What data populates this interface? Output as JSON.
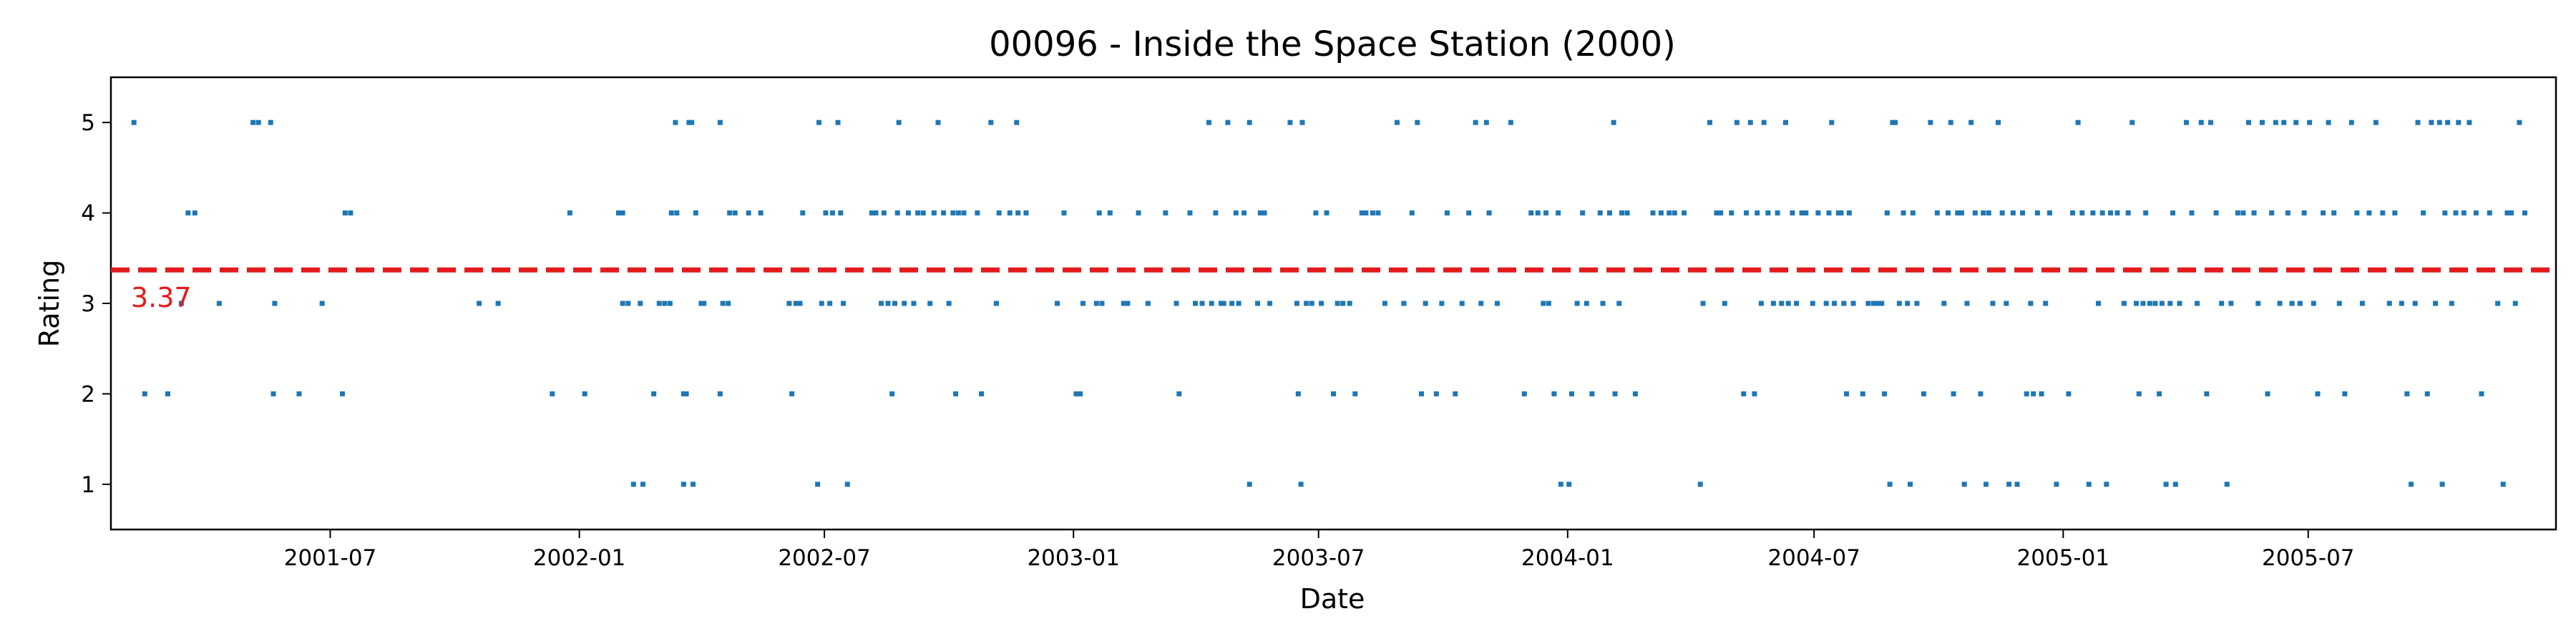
{
  "chart_data": {
    "type": "scatter",
    "title": "00096 - Inside the Space Station (2000)",
    "xlabel": "Date",
    "ylabel": "Rating",
    "xlim": [
      "2001-01-20",
      "2005-12-31"
    ],
    "ylim": [
      0.5,
      5.5
    ],
    "grid": false,
    "x_ticks": [
      "2001-07",
      "2002-01",
      "2002-07",
      "2003-01",
      "2003-07",
      "2004-01",
      "2004-07",
      "2005-01",
      "2005-07"
    ],
    "y_ticks": [
      1,
      2,
      3,
      4,
      5
    ],
    "series_color": "#1f77b4",
    "mean_line": {
      "value": 3.37,
      "label": "3.37",
      "color": "#e41a1c",
      "style": "dashed"
    },
    "points": [
      [
        "2001-02-06",
        5
      ],
      [
        "2001-02-14",
        2
      ],
      [
        "2001-03-03",
        2
      ],
      [
        "2001-03-18",
        4
      ],
      [
        "2001-03-23",
        4
      ],
      [
        "2001-03-13",
        3
      ],
      [
        "2001-04-10",
        3
      ],
      [
        "2001-05-05",
        5
      ],
      [
        "2001-05-09",
        5
      ],
      [
        "2001-05-18",
        5
      ],
      [
        "2001-05-21",
        3
      ],
      [
        "2001-05-20",
        2
      ],
      [
        "2001-06-08",
        2
      ],
      [
        "2001-06-25",
        3
      ],
      [
        "2001-07-10",
        2
      ],
      [
        "2001-07-12",
        4
      ],
      [
        "2001-07-16",
        4
      ],
      [
        "2001-10-19",
        3
      ],
      [
        "2001-11-02",
        3
      ],
      [
        "2001-12-12",
        2
      ],
      [
        "2001-12-25",
        4
      ],
      [
        "2002-01-05",
        2
      ],
      [
        "2002-01-30",
        4
      ],
      [
        "2002-02-02",
        4
      ],
      [
        "2002-02-02",
        3
      ],
      [
        "2002-02-06",
        3
      ],
      [
        "2002-02-10",
        1
      ],
      [
        "2002-02-15",
        3
      ],
      [
        "2002-02-17",
        1
      ],
      [
        "2002-02-25",
        2
      ],
      [
        "2002-03-01",
        3
      ],
      [
        "2002-03-05",
        3
      ],
      [
        "2002-03-09",
        3
      ],
      [
        "2002-03-10",
        4
      ],
      [
        "2002-03-13",
        5
      ],
      [
        "2002-03-14",
        4
      ],
      [
        "2002-03-19",
        1
      ],
      [
        "2002-03-19",
        2
      ],
      [
        "2002-03-21",
        2
      ],
      [
        "2002-03-23",
        5
      ],
      [
        "2002-03-25",
        5
      ],
      [
        "2002-03-26",
        1
      ],
      [
        "2002-03-28",
        4
      ],
      [
        "2002-04-01",
        3
      ],
      [
        "2002-04-03",
        3
      ],
      [
        "2002-04-15",
        5
      ],
      [
        "2002-04-15",
        2
      ],
      [
        "2002-04-17",
        3
      ],
      [
        "2002-04-21",
        3
      ],
      [
        "2002-04-22",
        4
      ],
      [
        "2002-04-26",
        4
      ],
      [
        "2002-05-06",
        4
      ],
      [
        "2002-05-15",
        4
      ],
      [
        "2002-06-05",
        3
      ],
      [
        "2002-06-07",
        2
      ],
      [
        "2002-06-10",
        3
      ],
      [
        "2002-06-13",
        3
      ],
      [
        "2002-06-15",
        4
      ],
      [
        "2002-06-27",
        5
      ],
      [
        "2002-06-26",
        1
      ],
      [
        "2002-06-29",
        3
      ],
      [
        "2002-07-02",
        4
      ],
      [
        "2002-07-05",
        3
      ],
      [
        "2002-07-07",
        4
      ],
      [
        "2002-07-11",
        5
      ],
      [
        "2002-07-13",
        4
      ],
      [
        "2002-07-15",
        3
      ],
      [
        "2002-07-18",
        1
      ],
      [
        "2002-08-05",
        4
      ],
      [
        "2002-08-08",
        4
      ],
      [
        "2002-08-12",
        3
      ],
      [
        "2002-08-14",
        4
      ],
      [
        "2002-08-17",
        3
      ],
      [
        "2002-08-20",
        2
      ],
      [
        "2002-08-22",
        3
      ],
      [
        "2002-08-24",
        4
      ],
      [
        "2002-08-25",
        5
      ],
      [
        "2002-08-29",
        3
      ],
      [
        "2002-09-01",
        4
      ],
      [
        "2002-09-05",
        3
      ],
      [
        "2002-09-08",
        4
      ],
      [
        "2002-09-12",
        4
      ],
      [
        "2002-09-17",
        3
      ],
      [
        "2002-09-20",
        4
      ],
      [
        "2002-09-23",
        5
      ],
      [
        "2002-09-27",
        4
      ],
      [
        "2002-10-01",
        3
      ],
      [
        "2002-10-04",
        4
      ],
      [
        "2002-10-06",
        2
      ],
      [
        "2002-10-08",
        4
      ],
      [
        "2002-10-12",
        4
      ],
      [
        "2002-10-22",
        4
      ],
      [
        "2002-10-25",
        2
      ],
      [
        "2002-11-01",
        5
      ],
      [
        "2002-11-05",
        3
      ],
      [
        "2002-11-07",
        4
      ],
      [
        "2002-11-15",
        4
      ],
      [
        "2002-11-20",
        5
      ],
      [
        "2002-11-21",
        4
      ],
      [
        "2002-11-27",
        4
      ],
      [
        "2002-12-20",
        3
      ],
      [
        "2002-12-25",
        4
      ],
      [
        "2003-01-03",
        2
      ],
      [
        "2003-01-06",
        2
      ],
      [
        "2003-01-08",
        3
      ],
      [
        "2003-01-18",
        3
      ],
      [
        "2003-01-20",
        4
      ],
      [
        "2003-01-22",
        3
      ],
      [
        "2003-01-28",
        4
      ],
      [
        "2003-02-07",
        3
      ],
      [
        "2003-02-10",
        3
      ],
      [
        "2003-02-18",
        4
      ],
      [
        "2003-02-25",
        3
      ],
      [
        "2003-03-10",
        4
      ],
      [
        "2003-03-18",
        3
      ],
      [
        "2003-03-20",
        2
      ],
      [
        "2003-03-28",
        4
      ],
      [
        "2003-04-01",
        3
      ],
      [
        "2003-04-06",
        3
      ],
      [
        "2003-04-11",
        5
      ],
      [
        "2003-04-13",
        3
      ],
      [
        "2003-04-16",
        4
      ],
      [
        "2003-04-20",
        3
      ],
      [
        "2003-04-22",
        3
      ],
      [
        "2003-04-25",
        5
      ],
      [
        "2003-04-28",
        3
      ],
      [
        "2003-05-01",
        4
      ],
      [
        "2003-05-03",
        3
      ],
      [
        "2003-05-07",
        4
      ],
      [
        "2003-05-11",
        5
      ],
      [
        "2003-05-11",
        1
      ],
      [
        "2003-05-17",
        3
      ],
      [
        "2003-05-19",
        4
      ],
      [
        "2003-05-22",
        4
      ],
      [
        "2003-05-26",
        3
      ],
      [
        "2003-06-10",
        5
      ],
      [
        "2003-06-15",
        3
      ],
      [
        "2003-06-18",
        1
      ],
      [
        "2003-06-16",
        2
      ],
      [
        "2003-06-19",
        5
      ],
      [
        "2003-06-22",
        3
      ],
      [
        "2003-06-26",
        3
      ],
      [
        "2003-06-29",
        4
      ],
      [
        "2003-07-03",
        3
      ],
      [
        "2003-07-07",
        4
      ],
      [
        "2003-07-12",
        2
      ],
      [
        "2003-07-15",
        3
      ],
      [
        "2003-07-19",
        3
      ],
      [
        "2003-07-24",
        3
      ],
      [
        "2003-07-28",
        2
      ],
      [
        "2003-08-02",
        4
      ],
      [
        "2003-08-05",
        4
      ],
      [
        "2003-08-10",
        4
      ],
      [
        "2003-08-14",
        4
      ],
      [
        "2003-08-19",
        3
      ],
      [
        "2003-08-28",
        5
      ],
      [
        "2003-09-02",
        3
      ],
      [
        "2003-09-08",
        4
      ],
      [
        "2003-09-12",
        5
      ],
      [
        "2003-09-15",
        2
      ],
      [
        "2003-09-18",
        3
      ],
      [
        "2003-09-26",
        2
      ],
      [
        "2003-09-30",
        3
      ],
      [
        "2003-10-04",
        4
      ],
      [
        "2003-10-10",
        2
      ],
      [
        "2003-10-15",
        3
      ],
      [
        "2003-10-20",
        4
      ],
      [
        "2003-10-25",
        5
      ],
      [
        "2003-10-29",
        3
      ],
      [
        "2003-11-02",
        5
      ],
      [
        "2003-11-04",
        4
      ],
      [
        "2003-11-10",
        3
      ],
      [
        "2003-11-20",
        5
      ],
      [
        "2003-11-30",
        2
      ],
      [
        "2003-12-05",
        4
      ],
      [
        "2003-12-10",
        4
      ],
      [
        "2003-12-14",
        3
      ],
      [
        "2003-12-16",
        4
      ],
      [
        "2003-12-18",
        3
      ],
      [
        "2003-12-22",
        2
      ],
      [
        "2003-12-25",
        4
      ],
      [
        "2003-12-27",
        1
      ],
      [
        "2004-01-02",
        1
      ],
      [
        "2004-01-04",
        2
      ],
      [
        "2004-01-08",
        3
      ],
      [
        "2004-01-12",
        4
      ],
      [
        "2004-01-15",
        3
      ],
      [
        "2004-01-19",
        2
      ],
      [
        "2004-01-25",
        4
      ],
      [
        "2004-01-27",
        3
      ],
      [
        "2004-02-01",
        4
      ],
      [
        "2004-02-05",
        2
      ],
      [
        "2004-02-04",
        5
      ],
      [
        "2004-02-08",
        3
      ],
      [
        "2004-02-10",
        4
      ],
      [
        "2004-02-14",
        4
      ],
      [
        "2004-02-20",
        2
      ],
      [
        "2004-03-04",
        4
      ],
      [
        "2004-03-10",
        4
      ],
      [
        "2004-03-16",
        4
      ],
      [
        "2004-03-20",
        4
      ],
      [
        "2004-03-27",
        4
      ],
      [
        "2004-04-08",
        1
      ],
      [
        "2004-04-10",
        3
      ],
      [
        "2004-04-15",
        5
      ],
      [
        "2004-04-20",
        4
      ],
      [
        "2004-04-23",
        4
      ],
      [
        "2004-04-26",
        3
      ],
      [
        "2004-05-01",
        4
      ],
      [
        "2004-05-05",
        5
      ],
      [
        "2004-05-10",
        2
      ],
      [
        "2004-05-12",
        4
      ],
      [
        "2004-05-15",
        5
      ],
      [
        "2004-05-18",
        2
      ],
      [
        "2004-05-20",
        4
      ],
      [
        "2004-05-23",
        3
      ],
      [
        "2004-05-25",
        5
      ],
      [
        "2004-05-28",
        4
      ],
      [
        "2004-06-01",
        3
      ],
      [
        "2004-06-04",
        4
      ],
      [
        "2004-06-07",
        3
      ],
      [
        "2004-06-10",
        5
      ],
      [
        "2004-06-12",
        3
      ],
      [
        "2004-06-15",
        4
      ],
      [
        "2004-06-18",
        3
      ],
      [
        "2004-06-22",
        4
      ],
      [
        "2004-06-25",
        4
      ],
      [
        "2004-06-30",
        3
      ],
      [
        "2004-07-04",
        4
      ],
      [
        "2004-07-10",
        3
      ],
      [
        "2004-07-12",
        4
      ],
      [
        "2004-07-14",
        5
      ],
      [
        "2004-07-16",
        3
      ],
      [
        "2004-07-19",
        4
      ],
      [
        "2004-07-21",
        4
      ],
      [
        "2004-07-23",
        3
      ],
      [
        "2004-07-25",
        2
      ],
      [
        "2004-07-27",
        4
      ],
      [
        "2004-07-30",
        3
      ],
      [
        "2004-08-06",
        2
      ],
      [
        "2004-08-10",
        3
      ],
      [
        "2004-08-14",
        3
      ],
      [
        "2004-08-17",
        3
      ],
      [
        "2004-08-20",
        3
      ],
      [
        "2004-08-22",
        2
      ],
      [
        "2004-08-24",
        4
      ],
      [
        "2004-08-26",
        1
      ],
      [
        "2004-08-28",
        5
      ],
      [
        "2004-08-30",
        5
      ],
      [
        "2004-09-02",
        3
      ],
      [
        "2004-09-05",
        4
      ],
      [
        "2004-09-08",
        3
      ],
      [
        "2004-09-10",
        1
      ],
      [
        "2004-09-12",
        4
      ],
      [
        "2004-09-15",
        3
      ],
      [
        "2004-09-20",
        2
      ],
      [
        "2004-09-25",
        5
      ],
      [
        "2004-09-30",
        4
      ],
      [
        "2004-10-05",
        3
      ],
      [
        "2004-10-08",
        4
      ],
      [
        "2004-10-10",
        5
      ],
      [
        "2004-10-12",
        2
      ],
      [
        "2004-10-15",
        4
      ],
      [
        "2004-10-18",
        4
      ],
      [
        "2004-10-20",
        1
      ],
      [
        "2004-10-22",
        3
      ],
      [
        "2004-10-25",
        5
      ],
      [
        "2004-10-28",
        4
      ],
      [
        "2004-11-01",
        2
      ],
      [
        "2004-11-03",
        4
      ],
      [
        "2004-11-05",
        1
      ],
      [
        "2004-11-07",
        4
      ],
      [
        "2004-11-10",
        3
      ],
      [
        "2004-11-14",
        5
      ],
      [
        "2004-11-17",
        4
      ],
      [
        "2004-11-20",
        3
      ],
      [
        "2004-11-22",
        1
      ],
      [
        "2004-11-25",
        4
      ],
      [
        "2004-11-28",
        1
      ],
      [
        "2004-12-02",
        4
      ],
      [
        "2004-12-05",
        2
      ],
      [
        "2004-12-08",
        3
      ],
      [
        "2004-12-10",
        2
      ],
      [
        "2004-12-13",
        4
      ],
      [
        "2004-12-16",
        2
      ],
      [
        "2004-12-19",
        3
      ],
      [
        "2004-12-22",
        4
      ],
      [
        "2004-12-27",
        1
      ],
      [
        "2005-01-05",
        2
      ],
      [
        "2005-01-08",
        4
      ],
      [
        "2005-01-12",
        5
      ],
      [
        "2005-01-15",
        4
      ],
      [
        "2005-01-20",
        1
      ],
      [
        "2005-01-23",
        4
      ],
      [
        "2005-01-27",
        3
      ],
      [
        "2005-01-30",
        4
      ],
      [
        "2005-02-02",
        1
      ],
      [
        "2005-02-05",
        4
      ],
      [
        "2005-02-10",
        4
      ],
      [
        "2005-02-15",
        3
      ],
      [
        "2005-02-18",
        4
      ],
      [
        "2005-02-21",
        5
      ],
      [
        "2005-02-24",
        3
      ],
      [
        "2005-02-26",
        2
      ],
      [
        "2005-03-01",
        3
      ],
      [
        "2005-03-03",
        4
      ],
      [
        "2005-03-06",
        3
      ],
      [
        "2005-03-10",
        3
      ],
      [
        "2005-03-13",
        2
      ],
      [
        "2005-03-15",
        3
      ],
      [
        "2005-03-18",
        1
      ],
      [
        "2005-03-21",
        3
      ],
      [
        "2005-03-23",
        4
      ],
      [
        "2005-03-25",
        1
      ],
      [
        "2005-03-28",
        3
      ],
      [
        "2005-04-02",
        5
      ],
      [
        "2005-04-06",
        4
      ],
      [
        "2005-04-10",
        3
      ],
      [
        "2005-04-13",
        5
      ],
      [
        "2005-04-17",
        2
      ],
      [
        "2005-04-20",
        5
      ],
      [
        "2005-04-24",
        4
      ],
      [
        "2005-04-28",
        3
      ],
      [
        "2005-05-02",
        1
      ],
      [
        "2005-05-05",
        3
      ],
      [
        "2005-05-10",
        4
      ],
      [
        "2005-05-14",
        4
      ],
      [
        "2005-05-18",
        5
      ],
      [
        "2005-05-22",
        4
      ],
      [
        "2005-05-25",
        3
      ],
      [
        "2005-05-28",
        5
      ],
      [
        "2005-06-01",
        2
      ],
      [
        "2005-06-04",
        4
      ],
      [
        "2005-06-07",
        5
      ],
      [
        "2005-06-10",
        3
      ],
      [
        "2005-06-13",
        5
      ],
      [
        "2005-06-16",
        4
      ],
      [
        "2005-06-19",
        3
      ],
      [
        "2005-06-22",
        5
      ],
      [
        "2005-06-25",
        3
      ],
      [
        "2005-06-28",
        4
      ],
      [
        "2005-07-02",
        5
      ],
      [
        "2005-07-05",
        3
      ],
      [
        "2005-07-08",
        2
      ],
      [
        "2005-07-12",
        4
      ],
      [
        "2005-07-16",
        5
      ],
      [
        "2005-07-20",
        4
      ],
      [
        "2005-07-24",
        3
      ],
      [
        "2005-07-28",
        2
      ],
      [
        "2005-08-02",
        5
      ],
      [
        "2005-08-06",
        4
      ],
      [
        "2005-08-10",
        3
      ],
      [
        "2005-08-15",
        4
      ],
      [
        "2005-08-20",
        5
      ],
      [
        "2005-08-25",
        4
      ],
      [
        "2005-08-30",
        3
      ],
      [
        "2005-09-03",
        4
      ],
      [
        "2005-09-08",
        3
      ],
      [
        "2005-09-12",
        2
      ],
      [
        "2005-09-15",
        1
      ],
      [
        "2005-09-18",
        3
      ],
      [
        "2005-09-20",
        5
      ],
      [
        "2005-09-24",
        4
      ],
      [
        "2005-09-27",
        2
      ],
      [
        "2005-09-30",
        5
      ],
      [
        "2005-10-03",
        3
      ],
      [
        "2005-10-06",
        5
      ],
      [
        "2005-10-08",
        1
      ],
      [
        "2005-10-10",
        4
      ],
      [
        "2005-10-12",
        5
      ],
      [
        "2005-10-15",
        3
      ],
      [
        "2005-10-18",
        4
      ],
      [
        "2005-10-20",
        5
      ],
      [
        "2005-10-24",
        4
      ],
      [
        "2005-10-28",
        5
      ],
      [
        "2005-11-02",
        4
      ],
      [
        "2005-11-06",
        2
      ],
      [
        "2005-11-12",
        4
      ],
      [
        "2005-11-18",
        3
      ],
      [
        "2005-11-22",
        1
      ],
      [
        "2005-11-25",
        4
      ],
      [
        "2005-11-28",
        4
      ],
      [
        "2005-12-01",
        3
      ],
      [
        "2005-12-04",
        5
      ],
      [
        "2005-12-08",
        4
      ]
    ]
  }
}
